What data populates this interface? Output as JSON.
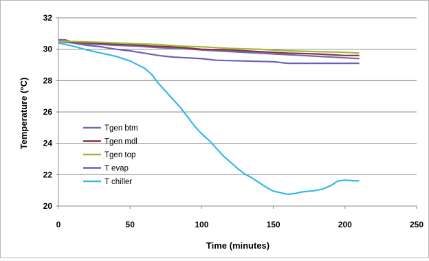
{
  "chart_data": {
    "type": "line",
    "xlabel": "Time (minutes)",
    "ylabel": "Temperature (°C)",
    "xlim": [
      0,
      250
    ],
    "ylim": [
      20,
      32
    ],
    "xticks": [
      "0",
      "50",
      "100",
      "150",
      "200",
      "250"
    ],
    "yticks": [
      "20",
      "22",
      "24",
      "26",
      "28",
      "30",
      "32"
    ],
    "grid": "horizontal",
    "legend_position": "left-inside",
    "series": [
      {
        "name": "Tgen btm",
        "color": "#7468a8",
        "points": [
          [
            0,
            30.6
          ],
          [
            5,
            30.6
          ],
          [
            10,
            30.45
          ],
          [
            20,
            30.35
          ],
          [
            30,
            30.3
          ],
          [
            40,
            30.25
          ],
          [
            55,
            30.2
          ],
          [
            70,
            30.1
          ],
          [
            85,
            30.05
          ],
          [
            100,
            29.95
          ],
          [
            120,
            29.85
          ],
          [
            140,
            29.75
          ],
          [
            160,
            29.65
          ],
          [
            180,
            29.55
          ],
          [
            200,
            29.45
          ],
          [
            210,
            29.4
          ]
        ]
      },
      {
        "name": "Tgen mdl",
        "color": "#8c2f45",
        "points": [
          [
            0,
            30.5
          ],
          [
            10,
            30.45
          ],
          [
            20,
            30.4
          ],
          [
            35,
            30.35
          ],
          [
            50,
            30.3
          ],
          [
            65,
            30.2
          ],
          [
            80,
            30.15
          ],
          [
            100,
            30.0
          ],
          [
            120,
            29.95
          ],
          [
            140,
            29.85
          ],
          [
            160,
            29.75
          ],
          [
            180,
            29.7
          ],
          [
            200,
            29.6
          ],
          [
            210,
            29.6
          ]
        ]
      },
      {
        "name": "Tgen top",
        "color": "#9bbb3b",
        "points": [
          [
            0,
            30.5
          ],
          [
            10,
            30.5
          ],
          [
            25,
            30.45
          ],
          [
            40,
            30.4
          ],
          [
            55,
            30.35
          ],
          [
            70,
            30.3
          ],
          [
            85,
            30.2
          ],
          [
            100,
            30.15
          ],
          [
            120,
            30.05
          ],
          [
            140,
            30.0
          ],
          [
            160,
            29.9
          ],
          [
            180,
            29.85
          ],
          [
            200,
            29.8
          ],
          [
            210,
            29.75
          ]
        ]
      },
      {
        "name": "T evap",
        "color": "#6a5fb5",
        "points": [
          [
            0,
            30.5
          ],
          [
            10,
            30.4
          ],
          [
            20,
            30.25
          ],
          [
            30,
            30.15
          ],
          [
            40,
            30.0
          ],
          [
            50,
            29.9
          ],
          [
            60,
            29.75
          ],
          [
            70,
            29.6
          ],
          [
            80,
            29.5
          ],
          [
            90,
            29.45
          ],
          [
            100,
            29.4
          ],
          [
            110,
            29.3
          ],
          [
            130,
            29.25
          ],
          [
            150,
            29.2
          ],
          [
            160,
            29.1
          ],
          [
            180,
            29.1
          ],
          [
            200,
            29.1
          ],
          [
            210,
            29.1
          ]
        ]
      },
      {
        "name": "T chiller",
        "color": "#35b8e6",
        "points": [
          [
            0,
            30.4
          ],
          [
            10,
            30.2
          ],
          [
            20,
            29.95
          ],
          [
            30,
            29.75
          ],
          [
            40,
            29.55
          ],
          [
            50,
            29.25
          ],
          [
            60,
            28.8
          ],
          [
            65,
            28.4
          ],
          [
            70,
            27.8
          ],
          [
            75,
            27.3
          ],
          [
            80,
            26.8
          ],
          [
            85,
            26.3
          ],
          [
            90,
            25.7
          ],
          [
            95,
            25.1
          ],
          [
            100,
            24.6
          ],
          [
            105,
            24.2
          ],
          [
            110,
            23.7
          ],
          [
            115,
            23.2
          ],
          [
            120,
            22.8
          ],
          [
            125,
            22.4
          ],
          [
            130,
            22.05
          ],
          [
            135,
            21.8
          ],
          [
            140,
            21.5
          ],
          [
            145,
            21.2
          ],
          [
            150,
            20.95
          ],
          [
            155,
            20.85
          ],
          [
            160,
            20.75
          ],
          [
            165,
            20.8
          ],
          [
            170,
            20.9
          ],
          [
            180,
            21.0
          ],
          [
            185,
            21.1
          ],
          [
            190,
            21.3
          ],
          [
            195,
            21.6
          ],
          [
            200,
            21.65
          ],
          [
            205,
            21.62
          ],
          [
            210,
            21.6
          ]
        ]
      }
    ]
  }
}
